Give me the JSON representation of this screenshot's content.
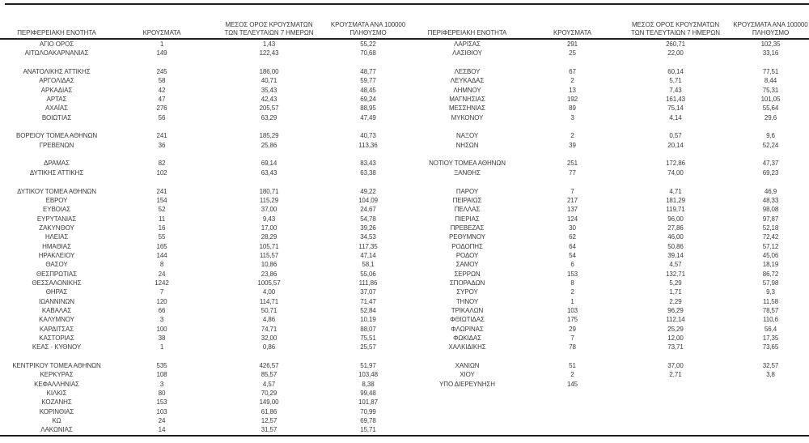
{
  "colors": {
    "text": "#3a3a3a",
    "rule": "#1f1f1f",
    "background": "#ffffff"
  },
  "table": {
    "headers": {
      "region": "ΠΕΡΙΦΕΡΕΙΑΚΗ ΕΝΟΤΗΤΑ",
      "cases": "ΚΡΟΥΣΜΑΤΑ",
      "avg_7day": "ΜΕΣΟΣ ΟΡΟΣ ΚΡΟΥΣΜΑΤΩΝ\nΤΩΝ ΤΕΛΕΥΤΑΙΩΝ 7 ΗΜΕΡΩΝ",
      "per_100k": "ΚΡΟΥΣΜΑΤΑ ΑΝΑ 100000\nΠΛΗΘΥΣΜΟ"
    },
    "left_rows": [
      [
        "ΑΓΙΟ ΟΡΟΣ",
        "1",
        "1,43",
        "55,22"
      ],
      [
        "ΑΙΤΩΛΟΑΚΑΡΝΑΝΙΑΣ",
        "149",
        "122,43",
        "70,68"
      ],
      null,
      [
        "ΑΝΑΤΟΛΙΚΗΣ ΑΤΤΙΚΗΣ",
        "245",
        "186,00",
        "48,77"
      ],
      [
        "ΑΡΓΟΛΙΔΑΣ",
        "58",
        "40,71",
        "59,77"
      ],
      [
        "ΑΡΚΑΔΙΑΣ",
        "42",
        "35,43",
        "48,45"
      ],
      [
        "ΑΡΤΑΣ",
        "47",
        "42,43",
        "69,24"
      ],
      [
        "ΑΧΑΪΑΣ",
        "276",
        "205,57",
        "88,95"
      ],
      [
        "ΒΟΙΩΤΙΑΣ",
        "56",
        "63,29",
        "47,49"
      ],
      null,
      [
        "ΒΟΡΕΙΟΥ ΤΟΜΕΑ ΑΘΗΝΩΝ",
        "241",
        "185,29",
        "40,73"
      ],
      [
        "ΓΡΕΒΕΝΩΝ",
        "36",
        "25,86",
        "113,36"
      ],
      null,
      [
        "ΔΡΑΜΑΣ",
        "82",
        "69,14",
        "83,43"
      ],
      [
        "ΔΥΤΙΚΗΣ ΑΤΤΙΚΗΣ",
        "102",
        "63,43",
        "63,38"
      ],
      null,
      [
        "ΔΥΤΙΚΟΥ ΤΟΜΕΑ ΑΘΗΝΩΝ",
        "241",
        "180,71",
        "49,22"
      ],
      [
        "ΕΒΡΟΥ",
        "154",
        "115,29",
        "104,09"
      ],
      [
        "ΕΥΒΟΙΑΣ",
        "52",
        "37,00",
        "24,67"
      ],
      [
        "ΕΥΡΥΤΑΝΙΑΣ",
        "11",
        "9,43",
        "54,78"
      ],
      [
        "ΖΑΚΥΝΘΟΥ",
        "16",
        "17,00",
        "39,26"
      ],
      [
        "ΗΛΕΙΑΣ",
        "55",
        "28,29",
        "34,53"
      ],
      [
        "ΗΜΑΘΙΑΣ",
        "165",
        "105,71",
        "117,35"
      ],
      [
        "ΗΡΑΚΛΕΙΟΥ",
        "144",
        "115,57",
        "47,14"
      ],
      [
        "ΘΑΣΟΥ",
        "8",
        "10,86",
        "58,1"
      ],
      [
        "ΘΕΣΠΡΩΤΙΑΣ",
        "24",
        "23,86",
        "55,06"
      ],
      [
        "ΘΕΣΣΑΛΟΝΙΚΗΣ",
        "1242",
        "1005,57",
        "111,86"
      ],
      [
        "ΘΗΡΑΣ",
        "7",
        "4,00",
        "37,07"
      ],
      [
        "ΙΩΑΝΝΙΝΩΝ",
        "120",
        "114,71",
        "71,47"
      ],
      [
        "ΚΑΒΑΛΑΣ",
        "66",
        "50,71",
        "52,84"
      ],
      [
        "ΚΑΛΥΜΝΟΥ",
        "3",
        "4,86",
        "10,19"
      ],
      [
        "ΚΑΡΔΙΤΣΑΣ",
        "100",
        "74,71",
        "88,07"
      ],
      [
        "ΚΑΣΤΟΡΙΑΣ",
        "38",
        "32,00",
        "75,51"
      ],
      [
        "ΚΕΑΣ - ΚΥΘΝΟΥ",
        "1",
        "0,86",
        "25,57"
      ],
      null,
      [
        "ΚΕΝΤΡΙΚΟΥ ΤΟΜΕΑ ΑΘΗΝΩΝ",
        "535",
        "426,57",
        "51,97"
      ],
      [
        "ΚΕΡΚΥΡΑΣ",
        "108",
        "85,57",
        "103,48"
      ],
      [
        "ΚΕΦΑΛΛΗΝΙΑΣ",
        "3",
        "4,57",
        "8,38"
      ],
      [
        "ΚΙΛΚΙΣ",
        "80",
        "70,29",
        "99,48"
      ],
      [
        "ΚΟΖΑΝΗΣ",
        "153",
        "149,00",
        "101,87"
      ],
      [
        "ΚΟΡΙΝΘΙΑΣ",
        "103",
        "61,86",
        "70,99"
      ],
      [
        "ΚΩ",
        "24",
        "12,57",
        "69,78"
      ],
      [
        "ΛΑΚΩΝΙΑΣ",
        "14",
        "31,57",
        "15,71"
      ]
    ],
    "right_rows": [
      [
        "ΛΑΡΙΣΑΣ",
        "291",
        "260,71",
        "102,35"
      ],
      [
        "ΛΑΣΙΘΙΟΥ",
        "25",
        "22,00",
        "33,16"
      ],
      null,
      [
        "ΛΕΣΒΟΥ",
        "67",
        "60,14",
        "77,51"
      ],
      [
        "ΛΕΥΚΑΔΑΣ",
        "2",
        "5,71",
        "8,44"
      ],
      [
        "ΛΗΜΝΟΥ",
        "13",
        "7,43",
        "75,31"
      ],
      [
        "ΜΑΓΝΗΣΙΑΣ",
        "192",
        "161,43",
        "101,05"
      ],
      [
        "ΜΕΣΣΗΝΙΑΣ",
        "89",
        "75,14",
        "55,64"
      ],
      [
        "ΜΥΚΟΝΟΥ",
        "3",
        "4,14",
        "29,6"
      ],
      null,
      [
        "ΝΑΞΟΥ",
        "2",
        "0,57",
        "9,6"
      ],
      [
        "ΝΗΣΩΝ",
        "39",
        "20,14",
        "52,24"
      ],
      null,
      [
        "ΝΟΤΙΟΥ ΤΟΜΕΑ ΑΘΗΝΩΝ",
        "251",
        "172,86",
        "47,37"
      ],
      [
        "ΞΑΝΘΗΣ",
        "77",
        "74,00",
        "69,23"
      ],
      null,
      [
        "ΠΑΡΟΥ",
        "7",
        "4,71",
        "46,9"
      ],
      [
        "ΠΕΙΡΑΙΩΣ",
        "217",
        "181,29",
        "48,33"
      ],
      [
        "ΠΕΛΛΑΣ",
        "137",
        "119,71",
        "98,08"
      ],
      [
        "ΠΙΕΡΙΑΣ",
        "124",
        "96,00",
        "97,87"
      ],
      [
        "ΠΡΕΒΕΖΑΣ",
        "30",
        "27,86",
        "52,18"
      ],
      [
        "ΡΕΘΥΜΝΟΥ",
        "62",
        "46,00",
        "72,42"
      ],
      [
        "ΡΟΔΟΠΗΣ",
        "64",
        "50,86",
        "57,12"
      ],
      [
        "ΡΟΔΟΥ",
        "54",
        "39,14",
        "45,06"
      ],
      [
        "ΣΑΜΟΥ",
        "6",
        "4,57",
        "18,19"
      ],
      [
        "ΣΕΡΡΩΝ",
        "153",
        "132,71",
        "86,72"
      ],
      [
        "ΣΠΟΡΑΔΩΝ",
        "8",
        "5,29",
        "57,98"
      ],
      [
        "ΣΥΡΟΥ",
        "2",
        "1,71",
        "9,3"
      ],
      [
        "ΤΗΝΟΥ",
        "1",
        "2,29",
        "11,58"
      ],
      [
        "ΤΡΙΚΑΛΩΝ",
        "103",
        "96,29",
        "78,57"
      ],
      [
        "ΦΘΙΩΤΙΔΑΣ",
        "175",
        "112,14",
        "110,6"
      ],
      [
        "ΦΛΩΡΙΝΑΣ",
        "29",
        "25,29",
        "56,4"
      ],
      [
        "ΦΩΚΙΔΑΣ",
        "7",
        "12,00",
        "17,35"
      ],
      [
        "ΧΑΛΚΙΔΙΚΗΣ",
        "78",
        "73,71",
        "73,65"
      ],
      null,
      [
        "ΧΑΝΙΩΝ",
        "51",
        "37,00",
        "32,57"
      ],
      [
        "ΧΙΟΥ",
        "2",
        "2,71",
        "3,8"
      ],
      [
        "ΥΠΟ ΔΙΕΡΕΥΝΗΣΗ",
        "145",
        "",
        ""
      ],
      null,
      null,
      null,
      null,
      null
    ]
  }
}
